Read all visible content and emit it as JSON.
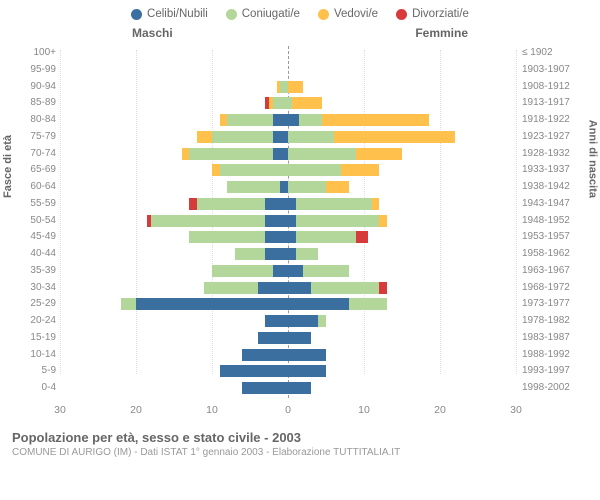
{
  "chart": {
    "type": "population-pyramid",
    "legend": [
      {
        "label": "Celibi/Nubili",
        "color": "#3b6fa0"
      },
      {
        "label": "Coniugati/e",
        "color": "#b3d69b"
      },
      {
        "label": "Vedovi/e",
        "color": "#ffc04c"
      },
      {
        "label": "Divorziati/e",
        "color": "#d73a3a"
      }
    ],
    "male_label": "Maschi",
    "female_label": "Femmine",
    "y_left_title": "Fasce di età",
    "y_right_title": "Anni di nascita",
    "x_max": 30,
    "x_tick_step": 10,
    "x_ticks": [
      30,
      20,
      10,
      0,
      10,
      20,
      30
    ],
    "grid_color": "#dddddd",
    "center_line_color": "#999999",
    "background_color": "#ffffff",
    "age_groups": [
      {
        "age": "100+",
        "birth": "≤ 1902",
        "m": [
          0,
          0,
          0,
          0
        ],
        "f": [
          0,
          0,
          0,
          0
        ]
      },
      {
        "age": "95-99",
        "birth": "1903-1907",
        "m": [
          0,
          0,
          0,
          0
        ],
        "f": [
          0,
          0,
          0,
          0
        ]
      },
      {
        "age": "90-94",
        "birth": "1908-1912",
        "m": [
          0,
          1,
          0.5,
          0
        ],
        "f": [
          0,
          0,
          2,
          0
        ]
      },
      {
        "age": "85-89",
        "birth": "1913-1917",
        "m": [
          0,
          2,
          0.5,
          0.5
        ],
        "f": [
          0,
          0.5,
          4,
          0
        ]
      },
      {
        "age": "80-84",
        "birth": "1918-1922",
        "m": [
          2,
          6,
          1,
          0
        ],
        "f": [
          1.5,
          3,
          14,
          0
        ]
      },
      {
        "age": "75-79",
        "birth": "1923-1927",
        "m": [
          2,
          8,
          2,
          0
        ],
        "f": [
          0,
          6,
          16,
          0
        ]
      },
      {
        "age": "70-74",
        "birth": "1928-1932",
        "m": [
          2,
          11,
          1,
          0
        ],
        "f": [
          0,
          9,
          6,
          0
        ]
      },
      {
        "age": "65-69",
        "birth": "1933-1937",
        "m": [
          0,
          9,
          1,
          0
        ],
        "f": [
          0,
          7,
          5,
          0
        ]
      },
      {
        "age": "60-64",
        "birth": "1938-1942",
        "m": [
          1,
          7,
          0,
          0
        ],
        "f": [
          0,
          5,
          3,
          0
        ]
      },
      {
        "age": "55-59",
        "birth": "1943-1947",
        "m": [
          3,
          9,
          0,
          1
        ],
        "f": [
          1,
          10,
          1,
          0
        ]
      },
      {
        "age": "50-54",
        "birth": "1948-1952",
        "m": [
          3,
          15,
          0,
          0.5
        ],
        "f": [
          1,
          11,
          1,
          0
        ]
      },
      {
        "age": "45-49",
        "birth": "1953-1957",
        "m": [
          3,
          10,
          0,
          0
        ],
        "f": [
          1,
          8,
          0,
          1.5
        ]
      },
      {
        "age": "40-44",
        "birth": "1958-1962",
        "m": [
          3,
          4,
          0,
          0
        ],
        "f": [
          1,
          3,
          0,
          0
        ]
      },
      {
        "age": "35-39",
        "birth": "1963-1967",
        "m": [
          2,
          8,
          0,
          0
        ],
        "f": [
          2,
          6,
          0,
          0
        ]
      },
      {
        "age": "30-34",
        "birth": "1968-1972",
        "m": [
          4,
          7,
          0,
          0
        ],
        "f": [
          3,
          9,
          0,
          1
        ]
      },
      {
        "age": "25-29",
        "birth": "1973-1977",
        "m": [
          20,
          2,
          0,
          0
        ],
        "f": [
          8,
          5,
          0,
          0
        ]
      },
      {
        "age": "20-24",
        "birth": "1978-1982",
        "m": [
          3,
          0,
          0,
          0
        ],
        "f": [
          4,
          1,
          0,
          0
        ]
      },
      {
        "age": "15-19",
        "birth": "1983-1987",
        "m": [
          4,
          0,
          0,
          0
        ],
        "f": [
          3,
          0,
          0,
          0
        ]
      },
      {
        "age": "10-14",
        "birth": "1988-1992",
        "m": [
          6,
          0,
          0,
          0
        ],
        "f": [
          5,
          0,
          0,
          0
        ]
      },
      {
        "age": "5-9",
        "birth": "1993-1997",
        "m": [
          9,
          0,
          0,
          0
        ],
        "f": [
          5,
          0,
          0,
          0
        ]
      },
      {
        "age": "0-4",
        "birth": "1998-2002",
        "m": [
          6,
          0,
          0,
          0
        ],
        "f": [
          3,
          0,
          0,
          0
        ]
      }
    ],
    "footer_title": "Popolazione per età, sesso e stato civile - 2003",
    "footer_sub": "COMUNE DI AURIGO (IM) - Dati ISTAT 1° gennaio 2003 - Elaborazione TUTTITALIA.IT",
    "label_fontsize": 10,
    "title_fontsize": 13
  }
}
